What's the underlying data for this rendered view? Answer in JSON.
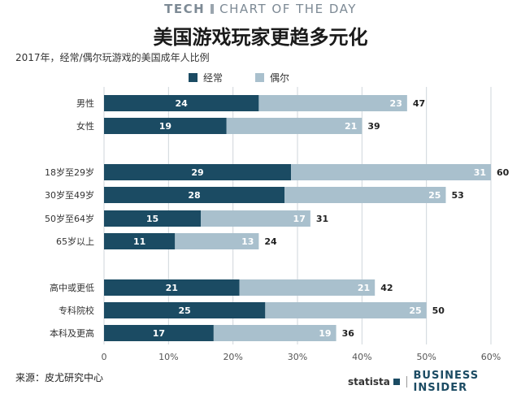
{
  "header": {
    "tag": "TECH",
    "section": "CHART OF THE DAY"
  },
  "title": "美国游戏玩家更趋多元化",
  "subtitle": "2017年，经常/偶尔玩游戏的美国成年人比例",
  "legend": [
    {
      "label": "经常",
      "color": "#1b4b63"
    },
    {
      "label": "偶尔",
      "color": "#a9c0cd"
    }
  ],
  "source": "来源：皮尤研究中心",
  "brand": {
    "statista": "statista",
    "publisher": "BUSINESS INSIDER"
  },
  "chart_data": {
    "type": "bar",
    "orientation": "horizontal",
    "stacked": true,
    "categories": [
      "男性",
      "女性",
      "18岁至29岁",
      "30岁至49岁",
      "50岁至64岁",
      "65岁以上",
      "高中或更低",
      "专科院校",
      "本科及更高"
    ],
    "groups": [
      [
        "男性",
        "女性"
      ],
      [
        "18岁至29岁",
        "30岁至49岁",
        "50岁至64岁",
        "65岁以上"
      ],
      [
        "高中或更低",
        "专科院校",
        "本科及更高"
      ]
    ],
    "series": [
      {
        "name": "经常",
        "values": [
          24,
          19,
          29,
          28,
          15,
          11,
          21,
          25,
          17
        ]
      },
      {
        "name": "偶尔",
        "values": [
          23,
          21,
          31,
          25,
          17,
          13,
          21,
          25,
          19
        ]
      }
    ],
    "totals": [
      47,
      39,
      60,
      53,
      31,
      24,
      42,
      50,
      36
    ],
    "xlim": [
      0,
      60
    ],
    "xticks": [
      "0",
      "10%",
      "20%",
      "30%",
      "40%",
      "50%",
      "60%"
    ],
    "colors": {
      "frequent": "#1b4b63",
      "occasional": "#a9c0cd",
      "grid": "#cfd6db"
    },
    "grid": true
  }
}
